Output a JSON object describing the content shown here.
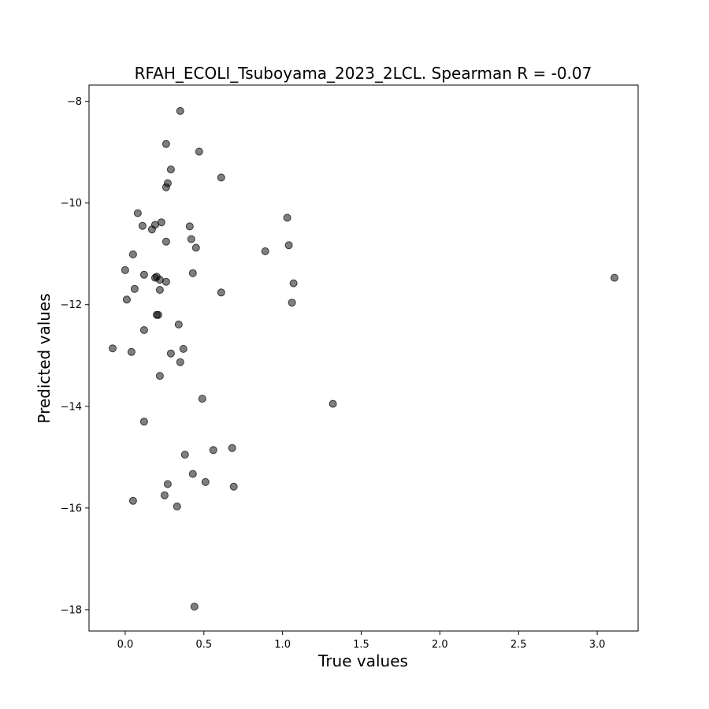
{
  "chart_data": {
    "type": "scatter",
    "title": "RFAH_ECOLI_Tsuboyama_2023_2LCL. Spearman R = -0.07",
    "xlabel": "True values",
    "ylabel": "Predicted values",
    "xlim": [
      -0.23,
      3.26
    ],
    "ylim": [
      -18.42,
      -7.68
    ],
    "xticks": [
      0.0,
      0.5,
      1.0,
      1.5,
      2.0,
      2.5,
      3.0
    ],
    "xtick_labels": [
      "0.0",
      "0.5",
      "1.0",
      "1.5",
      "2.0",
      "2.5",
      "3.0"
    ],
    "yticks": [
      -8,
      -10,
      -12,
      -14,
      -16,
      -18
    ],
    "ytick_labels": [
      "−8",
      "−10",
      "−12",
      "−14",
      "−16",
      "−18"
    ],
    "grid": false,
    "marker_color": "#000000",
    "marker_opacity": 0.5,
    "points": [
      {
        "x": 0.35,
        "y": -8.19
      },
      {
        "x": 0.26,
        "y": -8.84
      },
      {
        "x": 0.47,
        "y": -8.99
      },
      {
        "x": 0.29,
        "y": -9.34
      },
      {
        "x": 0.61,
        "y": -9.5
      },
      {
        "x": 0.27,
        "y": -9.61
      },
      {
        "x": 0.26,
        "y": -9.69
      },
      {
        "x": 0.08,
        "y": -10.2
      },
      {
        "x": 1.03,
        "y": -10.29
      },
      {
        "x": 0.23,
        "y": -10.38
      },
      {
        "x": 0.19,
        "y": -10.43
      },
      {
        "x": 0.11,
        "y": -10.45
      },
      {
        "x": 0.41,
        "y": -10.46
      },
      {
        "x": 0.17,
        "y": -10.52
      },
      {
        "x": 0.42,
        "y": -10.71
      },
      {
        "x": 0.26,
        "y": -10.76
      },
      {
        "x": 1.04,
        "y": -10.83
      },
      {
        "x": 0.45,
        "y": -10.88
      },
      {
        "x": 0.89,
        "y": -10.95
      },
      {
        "x": 0.05,
        "y": -11.01
      },
      {
        "x": 0.0,
        "y": -11.32
      },
      {
        "x": 0.43,
        "y": -11.38
      },
      {
        "x": 0.12,
        "y": -11.41
      },
      {
        "x": 0.2,
        "y": -11.45
      },
      {
        "x": 0.19,
        "y": -11.47
      },
      {
        "x": 3.11,
        "y": -11.47
      },
      {
        "x": 0.22,
        "y": -11.51
      },
      {
        "x": 0.26,
        "y": -11.55
      },
      {
        "x": 1.07,
        "y": -11.58
      },
      {
        "x": 0.06,
        "y": -11.69
      },
      {
        "x": 0.22,
        "y": -11.71
      },
      {
        "x": 0.61,
        "y": -11.76
      },
      {
        "x": 0.01,
        "y": -11.9
      },
      {
        "x": 1.06,
        "y": -11.96
      },
      {
        "x": 0.21,
        "y": -12.2
      },
      {
        "x": 0.2,
        "y": -12.2
      },
      {
        "x": 0.34,
        "y": -12.39
      },
      {
        "x": 0.12,
        "y": -12.5
      },
      {
        "x": -0.08,
        "y": -12.86
      },
      {
        "x": 0.37,
        "y": -12.87
      },
      {
        "x": 0.04,
        "y": -12.93
      },
      {
        "x": 0.29,
        "y": -12.96
      },
      {
        "x": 0.35,
        "y": -13.13
      },
      {
        "x": 0.22,
        "y": -13.4
      },
      {
        "x": 0.49,
        "y": -13.85
      },
      {
        "x": 1.32,
        "y": -13.95
      },
      {
        "x": 0.12,
        "y": -14.3
      },
      {
        "x": 0.68,
        "y": -14.82
      },
      {
        "x": 0.56,
        "y": -14.86
      },
      {
        "x": 0.38,
        "y": -14.95
      },
      {
        "x": 0.43,
        "y": -15.33
      },
      {
        "x": 0.51,
        "y": -15.49
      },
      {
        "x": 0.27,
        "y": -15.53
      },
      {
        "x": 0.69,
        "y": -15.58
      },
      {
        "x": 0.25,
        "y": -15.75
      },
      {
        "x": 0.05,
        "y": -15.86
      },
      {
        "x": 0.33,
        "y": -15.97
      },
      {
        "x": 0.44,
        "y": -17.94
      }
    ]
  }
}
